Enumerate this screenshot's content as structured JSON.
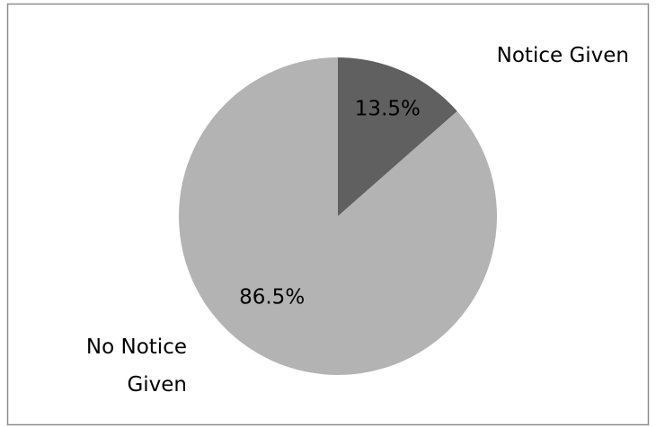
{
  "chart_data": {
    "type": "pie",
    "categories": [
      "Notice Given",
      "No Notice Given"
    ],
    "values": [
      13.5,
      86.5
    ],
    "value_labels": [
      "13.5%",
      "86.5%"
    ],
    "colors": [
      "#606060",
      "#b3b3b3"
    ]
  }
}
